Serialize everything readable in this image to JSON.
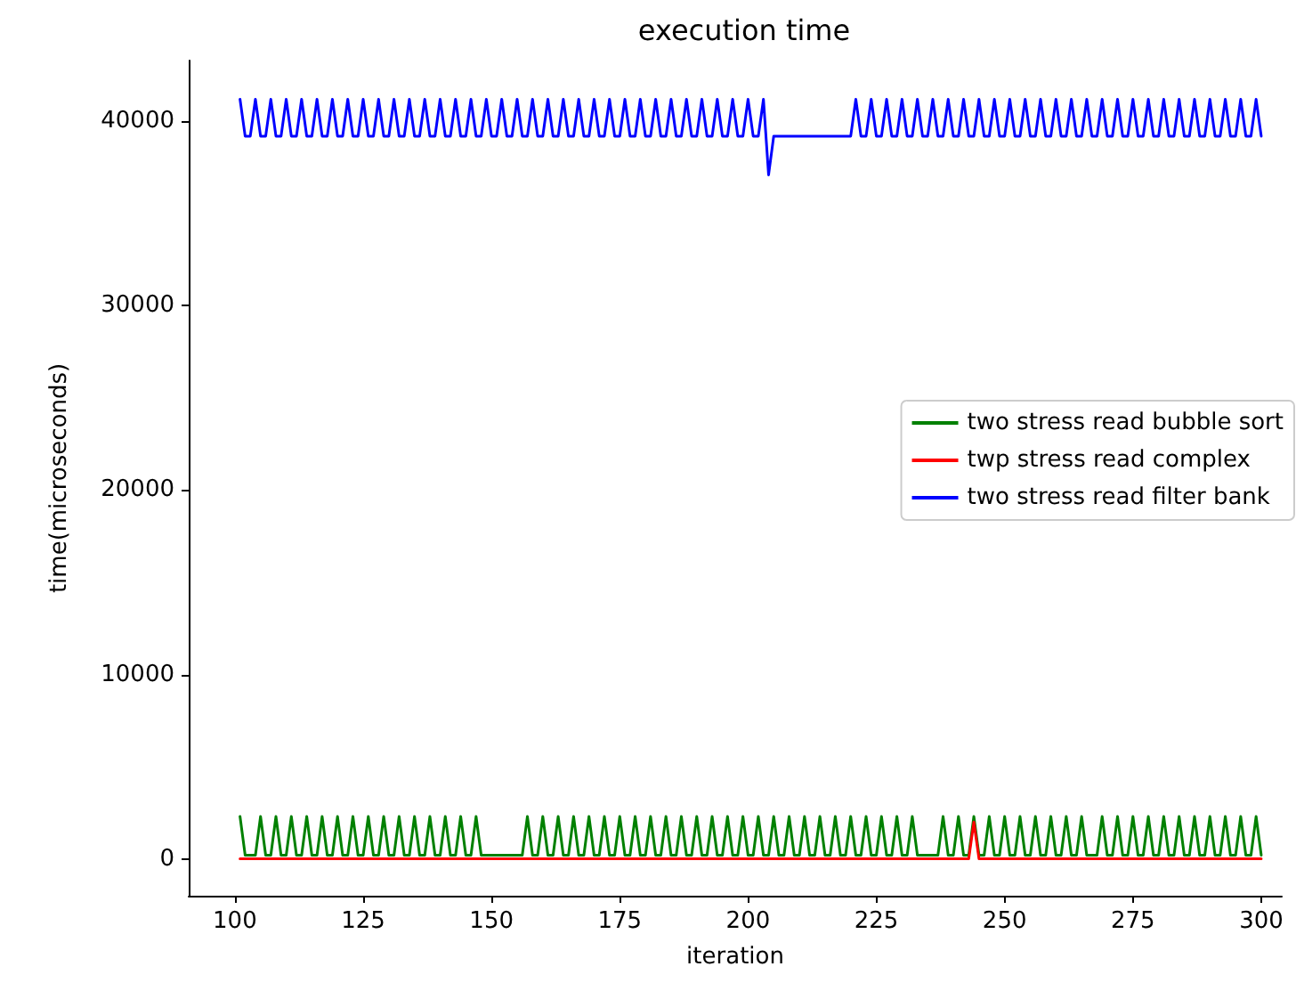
{
  "chart_data": {
    "type": "line",
    "title": "execution time",
    "xlabel": "iteration",
    "ylabel": "time(microseconds)",
    "x": [
      101,
      102,
      103,
      104,
      105,
      106,
      107,
      108,
      109,
      110,
      111,
      112,
      113,
      114,
      115,
      116,
      117,
      118,
      119,
      120,
      121,
      122,
      123,
      124,
      125,
      126,
      127,
      128,
      129,
      130,
      131,
      132,
      133,
      134,
      135,
      136,
      137,
      138,
      139,
      140,
      141,
      142,
      143,
      144,
      145,
      146,
      147,
      148,
      149,
      150,
      151,
      152,
      153,
      154,
      155,
      156,
      157,
      158,
      159,
      160,
      161,
      162,
      163,
      164,
      165,
      166,
      167,
      168,
      169,
      170,
      171,
      172,
      173,
      174,
      175,
      176,
      177,
      178,
      179,
      180,
      181,
      182,
      183,
      184,
      185,
      186,
      187,
      188,
      189,
      190,
      191,
      192,
      193,
      194,
      195,
      196,
      197,
      198,
      199,
      200,
      201,
      202,
      203,
      204,
      205,
      206,
      207,
      208,
      209,
      210,
      211,
      212,
      213,
      214,
      215,
      216,
      217,
      218,
      219,
      220,
      221,
      222,
      223,
      224,
      225,
      226,
      227,
      228,
      229,
      230,
      231,
      232,
      233,
      234,
      235,
      236,
      237,
      238,
      239,
      240,
      241,
      242,
      243,
      244,
      245,
      246,
      247,
      248,
      249,
      250,
      251,
      252,
      253,
      254,
      255,
      256,
      257,
      258,
      259,
      260,
      261,
      262,
      263,
      264,
      265,
      266,
      267,
      268,
      269,
      270,
      271,
      272,
      273,
      274,
      275,
      276,
      277,
      278,
      279,
      280,
      281,
      282,
      283,
      284,
      285,
      286,
      287,
      288,
      289,
      290,
      291,
      292,
      293,
      294,
      295,
      296,
      297,
      298,
      299,
      300
    ],
    "series": [
      {
        "name": "two stress read bubble sort",
        "color": "#008000",
        "values": [
          2300,
          200,
          200,
          200,
          2300,
          200,
          200,
          2300,
          200,
          200,
          2300,
          200,
          200,
          2300,
          200,
          200,
          2300,
          200,
          200,
          2300,
          200,
          200,
          2300,
          200,
          200,
          2300,
          200,
          200,
          2300,
          200,
          200,
          2300,
          200,
          200,
          2300,
          200,
          200,
          2300,
          200,
          200,
          2300,
          200,
          200,
          2300,
          200,
          200,
          2300,
          200,
          200,
          200,
          200,
          200,
          200,
          200,
          200,
          200,
          2300,
          200,
          200,
          2300,
          200,
          200,
          2300,
          200,
          200,
          2300,
          200,
          200,
          2300,
          200,
          200,
          2300,
          200,
          200,
          2300,
          200,
          200,
          2300,
          200,
          200,
          2300,
          200,
          200,
          2300,
          200,
          200,
          2300,
          200,
          200,
          2300,
          200,
          200,
          2300,
          200,
          200,
          2300,
          200,
          200,
          2300,
          200,
          200,
          2300,
          200,
          200,
          2300,
          200,
          200,
          2300,
          200,
          200,
          2300,
          200,
          200,
          2300,
          200,
          200,
          2300,
          200,
          200,
          2300,
          200,
          200,
          2300,
          200,
          200,
          2300,
          200,
          200,
          2300,
          200,
          200,
          2300,
          200,
          200,
          200,
          200,
          200,
          2300,
          200,
          200,
          2300,
          200,
          200,
          2300,
          200,
          200,
          2300,
          200,
          200,
          2300,
          200,
          200,
          2300,
          200,
          200,
          2300,
          200,
          200,
          2300,
          200,
          200,
          2300,
          200,
          200,
          2300,
          200,
          200,
          200,
          2300,
          200,
          200,
          2300,
          200,
          200,
          2300,
          200,
          200,
          2300,
          200,
          200,
          2300,
          200,
          200,
          2300,
          200,
          200,
          2300,
          200,
          200,
          2300,
          200,
          200,
          2300,
          200,
          200,
          2300,
          200,
          200,
          2300,
          200
        ]
      },
      {
        "name": "twp stress read complex",
        "color": "#ff0000",
        "values": [
          0,
          0,
          0,
          0,
          0,
          0,
          0,
          0,
          0,
          0,
          0,
          0,
          0,
          0,
          0,
          0,
          0,
          0,
          0,
          0,
          0,
          0,
          0,
          0,
          0,
          0,
          0,
          0,
          0,
          0,
          0,
          0,
          0,
          0,
          0,
          0,
          0,
          0,
          0,
          0,
          0,
          0,
          0,
          0,
          0,
          0,
          0,
          0,
          0,
          0,
          0,
          0,
          0,
          0,
          0,
          0,
          0,
          0,
          0,
          0,
          0,
          0,
          0,
          0,
          0,
          0,
          0,
          0,
          0,
          0,
          0,
          0,
          0,
          0,
          0,
          0,
          0,
          0,
          0,
          0,
          0,
          0,
          0,
          0,
          0,
          0,
          0,
          0,
          0,
          0,
          0,
          0,
          0,
          0,
          0,
          0,
          0,
          0,
          0,
          0,
          0,
          0,
          0,
          0,
          0,
          0,
          0,
          0,
          0,
          0,
          0,
          0,
          0,
          0,
          0,
          0,
          0,
          0,
          0,
          0,
          0,
          0,
          0,
          0,
          0,
          0,
          0,
          0,
          0,
          0,
          0,
          0,
          0,
          0,
          0,
          0,
          0,
          0,
          0,
          0,
          0,
          0,
          0,
          2000,
          0,
          0,
          0,
          0,
          0,
          0,
          0,
          0,
          0,
          0,
          0,
          0,
          0,
          0,
          0,
          0,
          0,
          0,
          0,
          0,
          0,
          0,
          0,
          0,
          0,
          0,
          0,
          0,
          0,
          0,
          0,
          0,
          0,
          0,
          0,
          0,
          0,
          0,
          0,
          0,
          0,
          0,
          0,
          0,
          0,
          0,
          0,
          0,
          0,
          0,
          0,
          0,
          0,
          0,
          0,
          0
        ]
      },
      {
        "name": "two stress read filter bank",
        "color": "#0000ff",
        "values": [
          41200,
          39200,
          39200,
          41200,
          39200,
          39200,
          41200,
          39200,
          39200,
          41200,
          39200,
          39200,
          41200,
          39200,
          39200,
          41200,
          39200,
          39200,
          41200,
          39200,
          39200,
          41200,
          39200,
          39200,
          41200,
          39200,
          39200,
          41200,
          39200,
          39200,
          41200,
          39200,
          39200,
          41200,
          39200,
          39200,
          41200,
          39200,
          39200,
          41200,
          39200,
          39200,
          41200,
          39200,
          39200,
          41200,
          39200,
          39200,
          41200,
          39200,
          39200,
          41200,
          39200,
          39200,
          41200,
          39200,
          39200,
          41200,
          39200,
          39200,
          41200,
          39200,
          39200,
          41200,
          39200,
          39200,
          41200,
          39200,
          39200,
          41200,
          39200,
          39200,
          41200,
          39200,
          39200,
          41200,
          39200,
          39200,
          41200,
          39200,
          39200,
          41200,
          39200,
          39200,
          41200,
          39200,
          39200,
          41200,
          39200,
          39200,
          41200,
          39200,
          39200,
          41200,
          39200,
          39200,
          41200,
          39200,
          39200,
          41200,
          39200,
          39200,
          41200,
          37100,
          39200,
          39200,
          39200,
          39200,
          39200,
          39200,
          39200,
          39200,
          39200,
          39200,
          39200,
          39200,
          39200,
          39200,
          39200,
          39200,
          41200,
          39200,
          39200,
          41200,
          39200,
          39200,
          41200,
          39200,
          39200,
          41200,
          39200,
          39200,
          41200,
          39200,
          39200,
          41200,
          39200,
          39200,
          41200,
          39200,
          39200,
          41200,
          39200,
          39200,
          41200,
          39200,
          39200,
          41200,
          39200,
          39200,
          41200,
          39200,
          39200,
          41200,
          39200,
          39200,
          41200,
          39200,
          39200,
          41200,
          39200,
          39200,
          41200,
          39200,
          39200,
          41200,
          39200,
          39200,
          41200,
          39200,
          39200,
          41200,
          39200,
          39200,
          41200,
          39200,
          39200,
          41200,
          39200,
          39200,
          41200,
          39200,
          39200,
          41200,
          39200,
          39200,
          41200,
          39200,
          39200,
          41200,
          39200,
          39200,
          41200,
          39200,
          39200,
          41200,
          39200,
          39200,
          41200,
          39200
        ]
      }
    ],
    "xlim": [
      91,
      304
    ],
    "xticks": [
      100,
      125,
      150,
      175,
      200,
      225,
      250,
      275,
      300
    ],
    "ylim": [
      -2000,
      43300
    ],
    "yticks": [
      0,
      10000,
      20000,
      30000,
      40000
    ],
    "grid": false,
    "legend": "right",
    "marker": "none",
    "line_style": "solid"
  }
}
